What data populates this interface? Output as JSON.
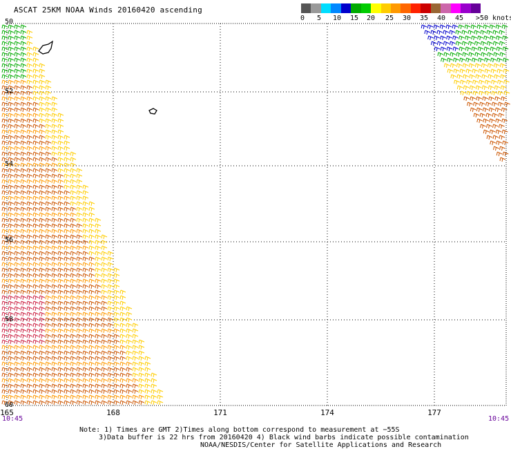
{
  "title": "ASCAT 25KM NOAA Winds 20160420 ascending",
  "legend": {
    "colors": [
      "#555555",
      "#999999",
      "#00ddff",
      "#0088ff",
      "#0000cc",
      "#00aa00",
      "#00cc00",
      "#ffff00",
      "#ffcc00",
      "#ff9900",
      "#ff6600",
      "#ff2200",
      "#cc0000",
      "#996633",
      "#cc66aa",
      "#ff00ff",
      "#9900cc",
      "#660099"
    ],
    "labels": [
      "0",
      "5",
      "10",
      "15",
      "20",
      "25",
      "30",
      "35",
      "40",
      "45",
      ">50 knots"
    ]
  },
  "axes": {
    "x_ticks": [
      "165",
      "168",
      "171",
      "174",
      "177"
    ],
    "y_ticks": [
      "50",
      "52",
      "54",
      "56",
      "58",
      "60"
    ],
    "time_left": "10:45",
    "time_right": "10:45"
  },
  "notes": {
    "line1": "Note: 1) Times are GMT 2)Times along bottom correspond to measurement at −55S",
    "line2": "3)Data buffer is 22 hrs from 20160420 4) Black wind barbs indicate possible contamination",
    "line3": "NOAA/NESDIS/Center for Satellite Applications and Research"
  }
}
